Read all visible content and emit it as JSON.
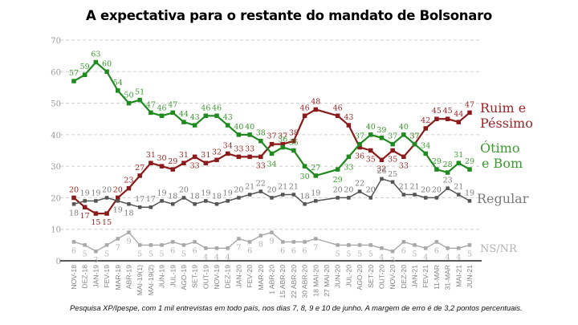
{
  "page": {
    "title": "A expectativa para o restante do mandato de  Bolsonaro",
    "footnote": "Pesquisa XP/Ipespe, com 1 mil entrevistas em todo país, nos dias 7, 8, 9 e 10 de junho. A margem de erro é de 3,2 pontos percentuais."
  },
  "chart_data": {
    "type": "line",
    "title": "A expectativa para o restante do mandato de  Bolsonaro",
    "xlabel": "",
    "ylabel": "",
    "ylim": [
      0,
      70
    ],
    "yticks": [
      0,
      10,
      20,
      30,
      40,
      50,
      60,
      70
    ],
    "grid": "horizontal dashed",
    "legend": "right (inline labels at line ends)",
    "categories": [
      "NOV-18",
      "DEZ-18",
      "JAN-19",
      "FEV-19",
      "MAR-19",
      "ABR-19",
      "MAI-19(1)",
      "MAI-19(2)",
      "JUN-19",
      "JUL-19",
      "AGO-19",
      "SET-19",
      "OUT-19",
      "NOV-19",
      "DEZ-19",
      "JAN-20",
      "FEV-20",
      "MAR-20",
      "1 ABR-20",
      "15 ABR-20",
      "22 ABR-20",
      "30 ABR-20",
      "18 MAI-20",
      "27 MAI-20",
      "JUN-20",
      "JUL-20",
      "AGO-20",
      "SET-20",
      "OUT-20",
      "NOV-20",
      "DEZ-20",
      "JAN-21",
      "FEV-21",
      "11-MAR",
      "31-MAR",
      "MAI-21",
      "JUN-21"
    ],
    "series": [
      {
        "name": "Ruim e Péssimo",
        "legend_lines": [
          "Ruim e",
          "Péssimo"
        ],
        "color": "#8b1a1a",
        "label_color": "#9b2424",
        "values": [
          20,
          17,
          15,
          15,
          20,
          23,
          27,
          31,
          30,
          29,
          31,
          33,
          31,
          32,
          34,
          33,
          33,
          33,
          37,
          37,
          38,
          46,
          48,
          null,
          46,
          43,
          36,
          35,
          32,
          35,
          33,
          37,
          42,
          45,
          45,
          44,
          47
        ]
      },
      {
        "name": "Ótimo e Bom",
        "legend_lines": [
          "Ótimo",
          "e Bom"
        ],
        "color": "#1f8a1f",
        "label_color": "#3a9a2e",
        "values": [
          57,
          59,
          63,
          60,
          54,
          50,
          51,
          47,
          46,
          47,
          44,
          43,
          46,
          46,
          43,
          40,
          40,
          38,
          34,
          36,
          35,
          30,
          27,
          null,
          29,
          33,
          37,
          40,
          39,
          37,
          40,
          37,
          34,
          29,
          28,
          31,
          29
        ]
      },
      {
        "name": "Regular",
        "legend_lines": [
          "Regular"
        ],
        "color": "#555555",
        "label_color": "#7a7a7a",
        "values": [
          18,
          19,
          19,
          20,
          19,
          18,
          17,
          17,
          19,
          18,
          20,
          18,
          19,
          18,
          19,
          20,
          21,
          22,
          20,
          21,
          21,
          18,
          19,
          null,
          20,
          20,
          22,
          20,
          26,
          25,
          21,
          21,
          20,
          20,
          23,
          21,
          19
        ]
      },
      {
        "name": "NS/NR",
        "legend_lines": [
          "NS/NR"
        ],
        "color": "#a8a8a8",
        "label_color": "#b0b0b0",
        "values": [
          6,
          5,
          3,
          5,
          7,
          9,
          5,
          5,
          5,
          6,
          5,
          6,
          4,
          4,
          4,
          7,
          6,
          8,
          9,
          6,
          6,
          6,
          7,
          null,
          5,
          5,
          5,
          5,
          4,
          3,
          6,
          5,
          4,
          6,
          4,
          4,
          5
        ]
      }
    ]
  }
}
